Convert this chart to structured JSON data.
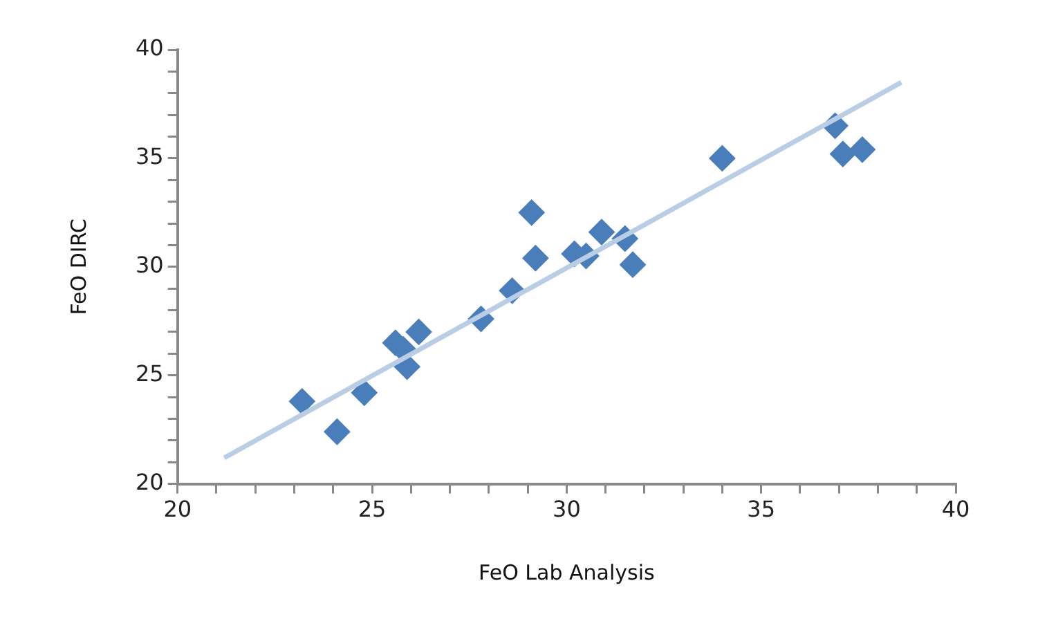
{
  "chart_data": {
    "type": "scatter",
    "xlabel": "FeO Lab Analysis",
    "ylabel": "FeO DIRC",
    "marker": "diamond",
    "legend": false,
    "grid": false,
    "xlim": [
      20,
      40
    ],
    "ylim": [
      20,
      40
    ],
    "xticks": [
      20,
      {
        "value": 21,
        "label": null
      },
      {
        "value": 22,
        "label": null
      },
      {
        "value": 23,
        "label": null
      },
      {
        "value": 24,
        "label": null
      },
      25,
      {
        "value": 26,
        "label": null
      },
      {
        "value": 27,
        "label": null
      },
      {
        "value": 28,
        "label": null
      },
      {
        "value": 29,
        "label": null
      },
      30,
      {
        "value": 31,
        "label": null
      },
      {
        "value": 32,
        "label": null
      },
      {
        "value": 33,
        "label": null
      },
      {
        "value": 34,
        "label": null
      },
      35,
      {
        "value": 36,
        "label": null
      },
      {
        "value": 37,
        "label": null
      },
      {
        "value": 38,
        "label": null
      },
      {
        "value": 39,
        "label": null
      },
      40
    ],
    "yticks": [
      20,
      {
        "value": 21,
        "label": null
      },
      {
        "value": 22,
        "label": null
      },
      {
        "value": 23,
        "label": null
      },
      {
        "value": 24,
        "label": null
      },
      25,
      {
        "value": 26,
        "label": null
      },
      {
        "value": 27,
        "label": null
      },
      {
        "value": 28,
        "label": null
      },
      {
        "value": 29,
        "label": null
      },
      30,
      {
        "value": 31,
        "label": null
      },
      {
        "value": 32,
        "label": null
      },
      {
        "value": 33,
        "label": null
      },
      {
        "value": 34,
        "label": null
      },
      35,
      {
        "value": 36,
        "label": null
      },
      {
        "value": 37,
        "label": null
      },
      {
        "value": 38,
        "label": null
      },
      {
        "value": 39,
        "label": null
      },
      40
    ],
    "series": [
      {
        "color": "#4a7ebb",
        "x": [
          23.2,
          24.1,
          24.8,
          25.6,
          25.8,
          25.9,
          26.2,
          27.8,
          28.6,
          29.1,
          29.2,
          30.2,
          30.5,
          30.9,
          31.5,
          31.7,
          34.0,
          36.9,
          37.1,
          37.6
        ],
        "values": [
          23.8,
          22.4,
          24.2,
          26.5,
          26.2,
          25.4,
          27.0,
          27.6,
          28.9,
          32.5,
          30.4,
          30.6,
          30.5,
          31.6,
          31.3,
          30.1,
          35.0,
          36.5,
          35.2,
          35.4
        ]
      },
      {
        "type": "line",
        "color": "#b9cde5",
        "marker": "none",
        "x": [
          21.2,
          38.6
        ],
        "values": [
          21.2,
          38.5
        ]
      }
    ]
  }
}
